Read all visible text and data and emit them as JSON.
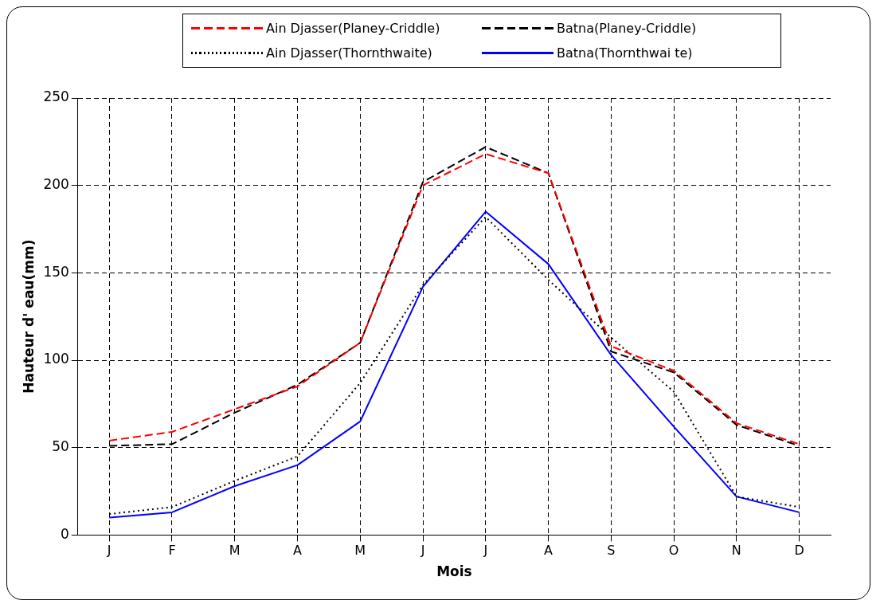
{
  "chart_data": {
    "type": "line",
    "xlabel": "Mois",
    "ylabel": "Hauteur d' eau(mm)",
    "categories": [
      "J",
      "F",
      "M",
      "A",
      "M",
      "J",
      "J",
      "A",
      "S",
      "O",
      "N",
      "D"
    ],
    "ylim": [
      0,
      250
    ],
    "yticks": [
      0,
      50,
      100,
      150,
      200,
      250
    ],
    "grid": true,
    "legend": "top",
    "marker": "none",
    "series": [
      {
        "name": "Ain Djasser(Planey-Criddle)",
        "color": "#ff0000",
        "line_style": "dashed",
        "values": [
          54,
          59,
          72,
          85,
          110,
          200,
          218,
          207,
          108,
          94,
          64,
          52
        ]
      },
      {
        "name": "Batna(Planey-Criddle)",
        "color": "#000000",
        "line_style": "dashed",
        "values": [
          51,
          52,
          70,
          86,
          110,
          202,
          222,
          207,
          105,
          93,
          63,
          51
        ]
      },
      {
        "name": "Ain Djasser(Thornthwaite)",
        "color": "#000000",
        "line_style": "dotted",
        "values": [
          12,
          16,
          31,
          45,
          87,
          143,
          182,
          146,
          113,
          82,
          22,
          16
        ]
      },
      {
        "name": "Batna(Thornthwai te)",
        "color": "#0000ff",
        "line_style": "solid",
        "values": [
          10,
          13,
          28,
          40,
          65,
          142,
          185,
          155,
          103,
          62,
          22,
          13
        ]
      }
    ]
  }
}
